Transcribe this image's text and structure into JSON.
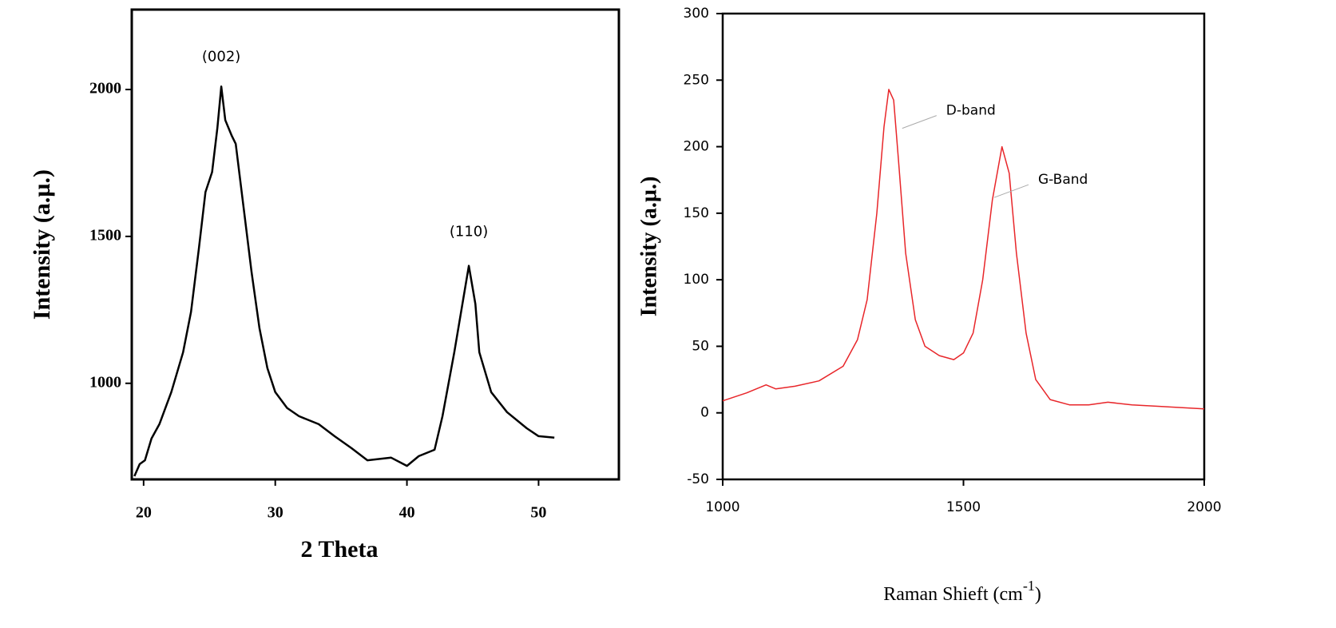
{
  "chart_data": [
    {
      "type": "line",
      "x": [
        19.3,
        19.7,
        20.1,
        20.6,
        21.2,
        22.1,
        23.0,
        23.6,
        24.2,
        24.7,
        25.2,
        25.6,
        25.9,
        26.2,
        26.7,
        27.0,
        27.6,
        28.2,
        28.8,
        29.4,
        30.0,
        30.9,
        31.8,
        33.3,
        34.5,
        35.8,
        37.0,
        38.8,
        40.0,
        40.9,
        42.1,
        42.7,
        43.6,
        44.7,
        45.2,
        45.5,
        46.4,
        47.6,
        49.1,
        50.0,
        51.2
      ],
      "series": [
        {
          "color": "#000000",
          "values": [
            684,
            725,
            738,
            812,
            861,
            970,
            1106,
            1243,
            1460,
            1651,
            1719,
            1869,
            2010,
            1896,
            1842,
            1815,
            1597,
            1379,
            1188,
            1052,
            970,
            916,
            888,
            861,
            820,
            779,
            738,
            747,
            719,
            752,
            774,
            888,
            1106,
            1400,
            1270,
            1106,
            970,
            902,
            847,
            820,
            815
          ]
        }
      ],
      "xlim": [
        19.1,
        56.1
      ],
      "ylim": [
        673,
        2272
      ],
      "xticks": [
        20,
        30,
        40,
        50
      ],
      "yticks": [
        1000,
        1500,
        2000
      ],
      "xlabel": "2 Theta",
      "ylabel": "Intensity (a.µ.)",
      "annotations": [
        {
          "text": "(002)",
          "x": 25.9,
          "y": 2110
        },
        {
          "text": "(110)",
          "x": 44.7,
          "y": 1515
        }
      ]
    },
    {
      "type": "line",
      "x": [
        1000,
        1050,
        1090,
        1110,
        1150,
        1200,
        1250,
        1280,
        1300,
        1320,
        1335,
        1345,
        1355,
        1365,
        1380,
        1400,
        1420,
        1450,
        1480,
        1500,
        1520,
        1540,
        1560,
        1580,
        1595,
        1610,
        1630,
        1650,
        1680,
        1720,
        1760,
        1800,
        1850,
        1900,
        2000
      ],
      "series": [
        {
          "color": "#e8262a",
          "values": [
            9,
            15,
            21,
            18,
            20,
            24,
            35,
            55,
            85,
            150,
            215,
            243,
            235,
            190,
            120,
            70,
            50,
            43,
            40,
            45,
            60,
            100,
            160,
            200,
            180,
            120,
            60,
            25,
            10,
            6,
            6,
            8,
            6,
            5,
            3
          ]
        }
      ],
      "xlim": [
        1000,
        2000
      ],
      "ylim": [
        -50,
        300
      ],
      "xticks": [
        1000,
        1500,
        2000
      ],
      "yticks": [
        -50,
        0,
        50,
        100,
        150,
        200,
        250,
        300
      ],
      "xlabel": [
        "Raman Shieft (cm",
        "-1",
        ")"
      ],
      "ylabel": "Intensity (a.µ.)",
      "annotations": [
        {
          "text": "D-band",
          "x": 1464,
          "y": 227
        },
        {
          "text": "G-Band",
          "x": 1655,
          "y": 175
        }
      ]
    }
  ]
}
